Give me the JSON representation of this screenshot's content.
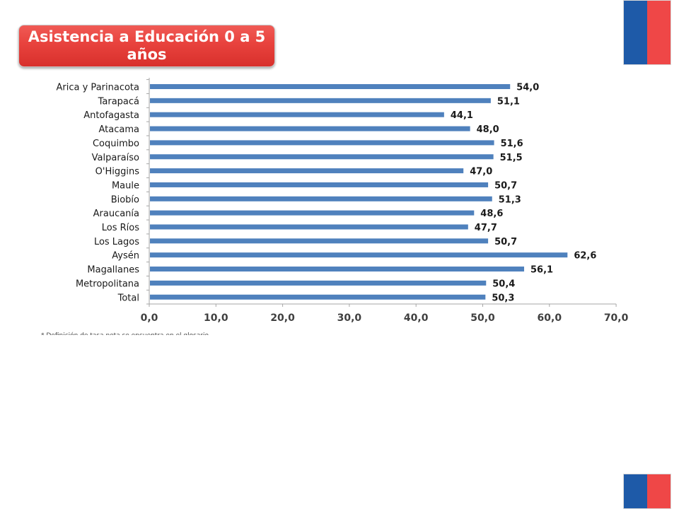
{
  "title": "Asistencia a Educación 0 a 5 años",
  "colors": {
    "bar": "#4f81bd",
    "title_bg": "#e8423d",
    "flag_blue": "#1e5aa8",
    "flag_red": "#ef4747"
  },
  "footnote": "* Definición de tasa neta se encuentra en el glosario",
  "chart_data": {
    "type": "bar",
    "orientation": "horizontal",
    "categories": [
      "Arica y Parinacota",
      "Tarapacá",
      "Antofagasta",
      "Atacama",
      "Coquimbo",
      "Valparaíso",
      "O'Higgins",
      "Maule",
      "Biobío",
      "Araucanía",
      "Los Ríos",
      "Los Lagos",
      "Aysén",
      "Magallanes",
      "Metropolitana",
      "Total"
    ],
    "values": [
      54.0,
      51.1,
      44.1,
      48.0,
      51.6,
      51.5,
      47.0,
      50.7,
      51.3,
      48.6,
      47.7,
      50.7,
      62.6,
      56.1,
      50.4,
      50.3
    ],
    "value_labels": [
      "54,0",
      "51,1",
      "44,1",
      "48,0",
      "51,6",
      "51,5",
      "47,0",
      "50,7",
      "51,3",
      "48,6",
      "47,7",
      "50,7",
      "62,6",
      "56,1",
      "50,4",
      "50,3"
    ],
    "xlim": [
      0,
      70
    ],
    "xticks": [
      "0,0",
      "10,0",
      "20,0",
      "30,0",
      "40,0",
      "50,0",
      "60,0",
      "70,0"
    ],
    "xlabel": "",
    "ylabel": "",
    "grid": false,
    "legend": "none"
  }
}
